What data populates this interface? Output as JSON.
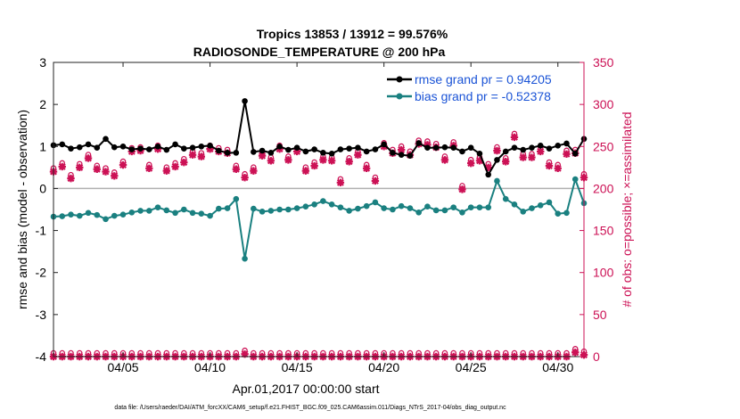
{
  "chart_data": {
    "type": "line",
    "title": "Tropics 13853 / 13912 = 99.576%",
    "subtitle": "RADIOSONDE_TEMPERATURE @ 200 hPa",
    "xlabel": "Apr.01,2017 00:00:00 start",
    "ylabel_left": "rmse and bias (model - observation)",
    "ylabel_right": "# of obs: o=possible; ×=assimilated",
    "xlim": [
      1,
      31.5
    ],
    "ylim_left": [
      -4,
      3
    ],
    "ylim_right": [
      0,
      350
    ],
    "x_ticks": [
      5,
      10,
      15,
      20,
      25,
      30
    ],
    "x_tick_labels": [
      "04/05",
      "04/10",
      "04/15",
      "04/20",
      "04/25",
      "04/30"
    ],
    "y_ticks_left": [
      "-4",
      "-3",
      "-2",
      "-1",
      "0",
      "1",
      "2",
      "3"
    ],
    "y_ticks_right": [
      "0",
      "50",
      "100",
      "150",
      "200",
      "250",
      "300",
      "350"
    ],
    "legend": {
      "position": "top-right",
      "entries": [
        {
          "name": "rmse grand pr = 0.94205",
          "color": "#000000"
        },
        {
          "name": "bias grand pr = -0.52378",
          "color": "#1a8080"
        }
      ]
    },
    "colors": {
      "rmse": "#000000",
      "bias": "#1a8080",
      "obs": "#cc1155",
      "zero_line": "#b0b0b0",
      "right_axis": "#cc1155"
    },
    "x": [
      1.0,
      1.5,
      2.0,
      2.5,
      3.0,
      3.5,
      4.0,
      4.5,
      5.0,
      5.5,
      6.0,
      6.5,
      7.0,
      7.5,
      8.0,
      8.5,
      9.0,
      9.5,
      10.0,
      10.5,
      11.0,
      11.5,
      12.0,
      12.5,
      13.0,
      13.5,
      14.0,
      14.5,
      15.0,
      15.5,
      16.0,
      16.5,
      17.0,
      17.5,
      18.0,
      18.5,
      19.0,
      19.5,
      20.0,
      20.5,
      21.0,
      21.5,
      22.0,
      22.5,
      23.0,
      23.5,
      24.0,
      24.5,
      25.0,
      25.5,
      26.0,
      26.5,
      27.0,
      27.5,
      28.0,
      28.5,
      29.0,
      29.5,
      30.0,
      30.5,
      31.0,
      31.5
    ],
    "series": [
      {
        "name": "rmse",
        "values": [
          1.03,
          1.05,
          0.95,
          0.98,
          1.05,
          0.97,
          1.18,
          0.98,
          1.0,
          0.93,
          0.95,
          0.93,
          1.0,
          0.92,
          1.05,
          0.95,
          0.97,
          1.0,
          1.02,
          0.9,
          0.85,
          0.85,
          2.08,
          0.87,
          0.9,
          0.85,
          1.0,
          0.92,
          0.97,
          0.88,
          0.93,
          0.85,
          0.83,
          0.93,
          0.95,
          0.97,
          0.88,
          0.93,
          1.05,
          0.85,
          0.8,
          0.78,
          1.08,
          0.97,
          0.97,
          0.98,
          0.97,
          0.88,
          0.97,
          0.83,
          0.33,
          0.68,
          0.88,
          0.97,
          0.92,
          0.97,
          1.02,
          0.95,
          1.02,
          1.07,
          0.83,
          1.18
        ]
      },
      {
        "name": "bias",
        "values": [
          -0.67,
          -0.66,
          -0.62,
          -0.65,
          -0.58,
          -0.63,
          -0.73,
          -0.65,
          -0.62,
          -0.57,
          -0.53,
          -0.53,
          -0.45,
          -0.52,
          -0.58,
          -0.5,
          -0.58,
          -0.6,
          -0.65,
          -0.48,
          -0.47,
          -0.25,
          -1.67,
          -0.48,
          -0.55,
          -0.53,
          -0.5,
          -0.5,
          -0.47,
          -0.43,
          -0.38,
          -0.3,
          -0.38,
          -0.45,
          -0.53,
          -0.48,
          -0.42,
          -0.33,
          -0.47,
          -0.5,
          -0.42,
          -0.47,
          -0.57,
          -0.43,
          -0.52,
          -0.52,
          -0.45,
          -0.57,
          -0.45,
          -0.45,
          -0.45,
          0.18,
          -0.25,
          -0.38,
          -0.55,
          -0.47,
          -0.4,
          -0.33,
          -0.6,
          -0.58,
          0.22,
          -0.35
        ]
      },
      {
        "name": "obs_assimilated",
        "values": [
          220,
          226,
          212,
          225,
          236,
          223,
          220,
          215,
          228,
          244,
          245,
          224,
          247,
          221,
          226,
          231,
          240,
          238,
          247,
          244,
          242,
          223,
          213,
          221,
          239,
          233,
          247,
          234,
          244,
          221,
          227,
          234,
          233,
          207,
          232,
          240,
          224,
          209,
          250,
          242,
          246,
          240,
          253,
          252,
          249,
          234,
          251,
          199,
          230,
          233,
          225,
          245,
          232,
          261,
          237,
          237,
          244,
          227,
          224,
          241,
          242,
          213
        ]
      },
      {
        "name": "obs_possible",
        "values": [
          220,
          226,
          212,
          225,
          236,
          223,
          220,
          215,
          228,
          244,
          245,
          224,
          247,
          221,
          226,
          231,
          240,
          238,
          247,
          244,
          242,
          223,
          213,
          221,
          239,
          233,
          247,
          234,
          244,
          221,
          227,
          234,
          233,
          207,
          232,
          240,
          224,
          209,
          250,
          242,
          246,
          240,
          253,
          252,
          249,
          234,
          251,
          199,
          230,
          233,
          225,
          245,
          232,
          261,
          237,
          237,
          244,
          227,
          224,
          241,
          242,
          213
        ]
      }
    ],
    "obs_bottom": {
      "assimilated": [
        0,
        0,
        0,
        0,
        0,
        0,
        0,
        0,
        0,
        0,
        0,
        0,
        0,
        0,
        0,
        0,
        0,
        0,
        0,
        0,
        0,
        0,
        3,
        0,
        0,
        0,
        0,
        0,
        0,
        0,
        0,
        0,
        0,
        0,
        0,
        0,
        0,
        0,
        0,
        0,
        0,
        0,
        0,
        0,
        0,
        0,
        0,
        0,
        0,
        0,
        0,
        0,
        0,
        0,
        0,
        0,
        0,
        0,
        0,
        0,
        5,
        2
      ],
      "possible": [
        0,
        0,
        0,
        0,
        0,
        0,
        0,
        0,
        0,
        0,
        0,
        0,
        0,
        0,
        0,
        0,
        0,
        0,
        0,
        0,
        0,
        0,
        3,
        0,
        0,
        0,
        0,
        0,
        0,
        0,
        0,
        0,
        0,
        0,
        0,
        0,
        0,
        0,
        0,
        0,
        0,
        0,
        0,
        0,
        0,
        0,
        0,
        0,
        0,
        0,
        0,
        0,
        0,
        0,
        0,
        0,
        0,
        0,
        0,
        0,
        5,
        2
      ]
    },
    "footnote": "data file: /Users/raeder/DAI/ATM_forcXX/CAM6_setup/f.e21.FHIST_BGC.f09_025.CAM6assim.011/Diags_NTrS_2017-04/obs_diag_output.nc"
  }
}
